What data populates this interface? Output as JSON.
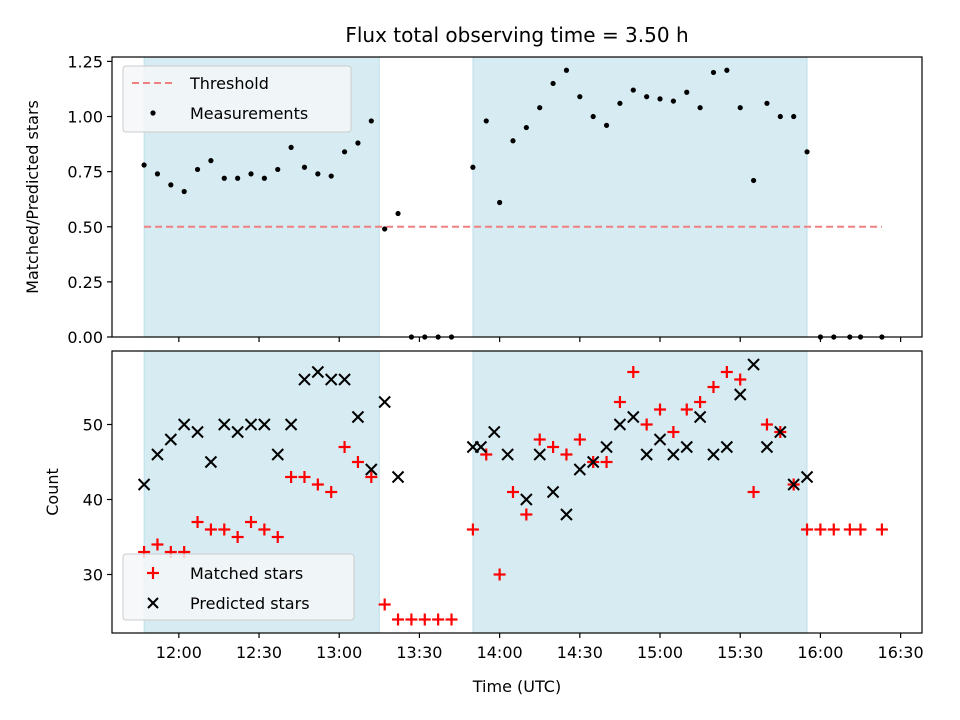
{
  "chart_data": [
    {
      "type": "scatter",
      "title": "Flux total observing time = 3.50 h",
      "xlabel": "",
      "ylabel": "Matched/Predicted stars",
      "x_unit": "time (UTC)",
      "ylim": [
        0,
        1.27
      ],
      "yticks": [
        "0.00",
        "0.25",
        "0.50",
        "0.75",
        "1.00",
        "1.25"
      ],
      "shaded_intervals": [
        [
          "11:47",
          "13:15"
        ],
        [
          "13:50",
          "15:55"
        ]
      ],
      "threshold": {
        "name": "Threshold",
        "value": 0.5,
        "x_range": [
          "11:47",
          "16:23"
        ],
        "color": "#f08080"
      },
      "legend": {
        "placement": "top-left",
        "entries": [
          "Threshold",
          "Measurements"
        ]
      },
      "series": [
        {
          "name": "Measurements",
          "color": "#000000",
          "points": [
            [
              "11:47",
              0.78
            ],
            [
              "11:52",
              0.74
            ],
            [
              "11:57",
              0.69
            ],
            [
              "12:02",
              0.66
            ],
            [
              "12:07",
              0.76
            ],
            [
              "12:12",
              0.8
            ],
            [
              "12:17",
              0.72
            ],
            [
              "12:22",
              0.72
            ],
            [
              "12:27",
              0.74
            ],
            [
              "12:32",
              0.72
            ],
            [
              "12:37",
              0.76
            ],
            [
              "12:42",
              0.86
            ],
            [
              "12:47",
              0.77
            ],
            [
              "12:52",
              0.74
            ],
            [
              "12:57",
              0.73
            ],
            [
              "13:02",
              0.84
            ],
            [
              "13:07",
              0.88
            ],
            [
              "13:12",
              0.98
            ],
            [
              "13:17",
              0.49
            ],
            [
              "13:22",
              0.56
            ],
            [
              "13:27",
              0.0
            ],
            [
              "13:32",
              0.0
            ],
            [
              "13:37",
              0.0
            ],
            [
              "13:42",
              0.0
            ],
            [
              "13:50",
              0.77
            ],
            [
              "13:55",
              0.98
            ],
            [
              "14:00",
              0.61
            ],
            [
              "14:05",
              0.89
            ],
            [
              "14:10",
              0.95
            ],
            [
              "14:15",
              1.04
            ],
            [
              "14:20",
              1.15
            ],
            [
              "14:25",
              1.21
            ],
            [
              "14:30",
              1.09
            ],
            [
              "14:35",
              1.0
            ],
            [
              "14:40",
              0.96
            ],
            [
              "14:45",
              1.06
            ],
            [
              "14:50",
              1.12
            ],
            [
              "14:55",
              1.09
            ],
            [
              "15:00",
              1.08
            ],
            [
              "15:05",
              1.07
            ],
            [
              "15:10",
              1.11
            ],
            [
              "15:15",
              1.04
            ],
            [
              "15:20",
              1.2
            ],
            [
              "15:25",
              1.21
            ],
            [
              "15:30",
              1.04
            ],
            [
              "15:35",
              0.71
            ],
            [
              "15:40",
              1.06
            ],
            [
              "15:45",
              1.0
            ],
            [
              "15:50",
              1.0
            ],
            [
              "15:55",
              0.84
            ],
            [
              "16:00",
              0.0
            ],
            [
              "16:05",
              0.0
            ],
            [
              "16:11",
              0.0
            ],
            [
              "16:15",
              0.0
            ],
            [
              "16:23",
              0.0
            ]
          ]
        }
      ]
    },
    {
      "type": "scatter",
      "title": "",
      "xlabel": "Time (UTC)",
      "ylabel": "Count",
      "ylim": [
        22.2,
        59.8
      ],
      "yticks": [
        "30",
        "40",
        "50"
      ],
      "xticks": [
        "12:00",
        "12:30",
        "13:00",
        "13:30",
        "14:00",
        "14:30",
        "15:00",
        "15:30",
        "16:00",
        "16:30"
      ],
      "shaded_intervals": [
        [
          "11:47",
          "13:15"
        ],
        [
          "13:50",
          "15:55"
        ]
      ],
      "legend": {
        "placement": "bottom-left",
        "entries": [
          "Matched stars",
          "Predicted stars"
        ]
      },
      "series": [
        {
          "name": "Matched stars",
          "marker": "+",
          "color": "#ff0000",
          "points": [
            [
              "11:47",
              33
            ],
            [
              "11:52",
              34
            ],
            [
              "11:57",
              33
            ],
            [
              "12:02",
              33
            ],
            [
              "12:07",
              37
            ],
            [
              "12:12",
              36
            ],
            [
              "12:17",
              36
            ],
            [
              "12:22",
              35
            ],
            [
              "12:27",
              37
            ],
            [
              "12:32",
              36
            ],
            [
              "12:37",
              35
            ],
            [
              "12:42",
              43
            ],
            [
              "12:47",
              43
            ],
            [
              "12:52",
              42
            ],
            [
              "12:57",
              41
            ],
            [
              "13:02",
              47
            ],
            [
              "13:07",
              45
            ],
            [
              "13:12",
              43
            ],
            [
              "13:17",
              26
            ],
            [
              "13:22",
              24
            ],
            [
              "13:27",
              24
            ],
            [
              "13:32",
              24
            ],
            [
              "13:37",
              24
            ],
            [
              "13:42",
              24
            ],
            [
              "13:50",
              36
            ],
            [
              "13:55",
              46
            ],
            [
              "14:00",
              30
            ],
            [
              "14:05",
              41
            ],
            [
              "14:10",
              38
            ],
            [
              "14:15",
              48
            ],
            [
              "14:20",
              47
            ],
            [
              "14:25",
              46
            ],
            [
              "14:30",
              48
            ],
            [
              "14:35",
              45
            ],
            [
              "14:40",
              45
            ],
            [
              "14:45",
              53
            ],
            [
              "14:50",
              57
            ],
            [
              "14:55",
              50
            ],
            [
              "15:00",
              52
            ],
            [
              "15:05",
              49
            ],
            [
              "15:10",
              52
            ],
            [
              "15:15",
              53
            ],
            [
              "15:20",
              55
            ],
            [
              "15:25",
              57
            ],
            [
              "15:30",
              56
            ],
            [
              "15:35",
              41
            ],
            [
              "15:40",
              50
            ],
            [
              "15:45",
              49
            ],
            [
              "15:50",
              42
            ],
            [
              "15:55",
              36
            ],
            [
              "16:00",
              36
            ],
            [
              "16:05",
              36
            ],
            [
              "16:11",
              36
            ],
            [
              "16:15",
              36
            ],
            [
              "16:23",
              36
            ]
          ]
        },
        {
          "name": "Predicted stars",
          "marker": "x",
          "color": "#000000",
          "points": [
            [
              "11:47",
              42
            ],
            [
              "11:52",
              46
            ],
            [
              "11:57",
              48
            ],
            [
              "12:02",
              50
            ],
            [
              "12:07",
              49
            ],
            [
              "12:12",
              45
            ],
            [
              "12:17",
              50
            ],
            [
              "12:22",
              49
            ],
            [
              "12:27",
              50
            ],
            [
              "12:32",
              50
            ],
            [
              "12:37",
              46
            ],
            [
              "12:42",
              50
            ],
            [
              "12:47",
              56
            ],
            [
              "12:52",
              57
            ],
            [
              "12:57",
              56
            ],
            [
              "13:02",
              56
            ],
            [
              "13:07",
              51
            ],
            [
              "13:12",
              44
            ],
            [
              "13:17",
              53
            ],
            [
              "13:22",
              43
            ],
            [
              "13:50",
              47
            ],
            [
              "13:53",
              47
            ],
            [
              "13:58",
              49
            ],
            [
              "14:03",
              46
            ],
            [
              "14:10",
              40
            ],
            [
              "14:15",
              46
            ],
            [
              "14:20",
              41
            ],
            [
              "14:25",
              38
            ],
            [
              "14:30",
              44
            ],
            [
              "14:35",
              45
            ],
            [
              "14:40",
              47
            ],
            [
              "14:45",
              50
            ],
            [
              "14:50",
              51
            ],
            [
              "14:55",
              46
            ],
            [
              "15:00",
              48
            ],
            [
              "15:05",
              46
            ],
            [
              "15:10",
              47
            ],
            [
              "15:15",
              51
            ],
            [
              "15:20",
              46
            ],
            [
              "15:25",
              47
            ],
            [
              "15:30",
              54
            ],
            [
              "15:35",
              58
            ],
            [
              "15:40",
              47
            ],
            [
              "15:45",
              49
            ],
            [
              "15:50",
              42
            ],
            [
              "15:55",
              43
            ]
          ]
        }
      ]
    }
  ]
}
